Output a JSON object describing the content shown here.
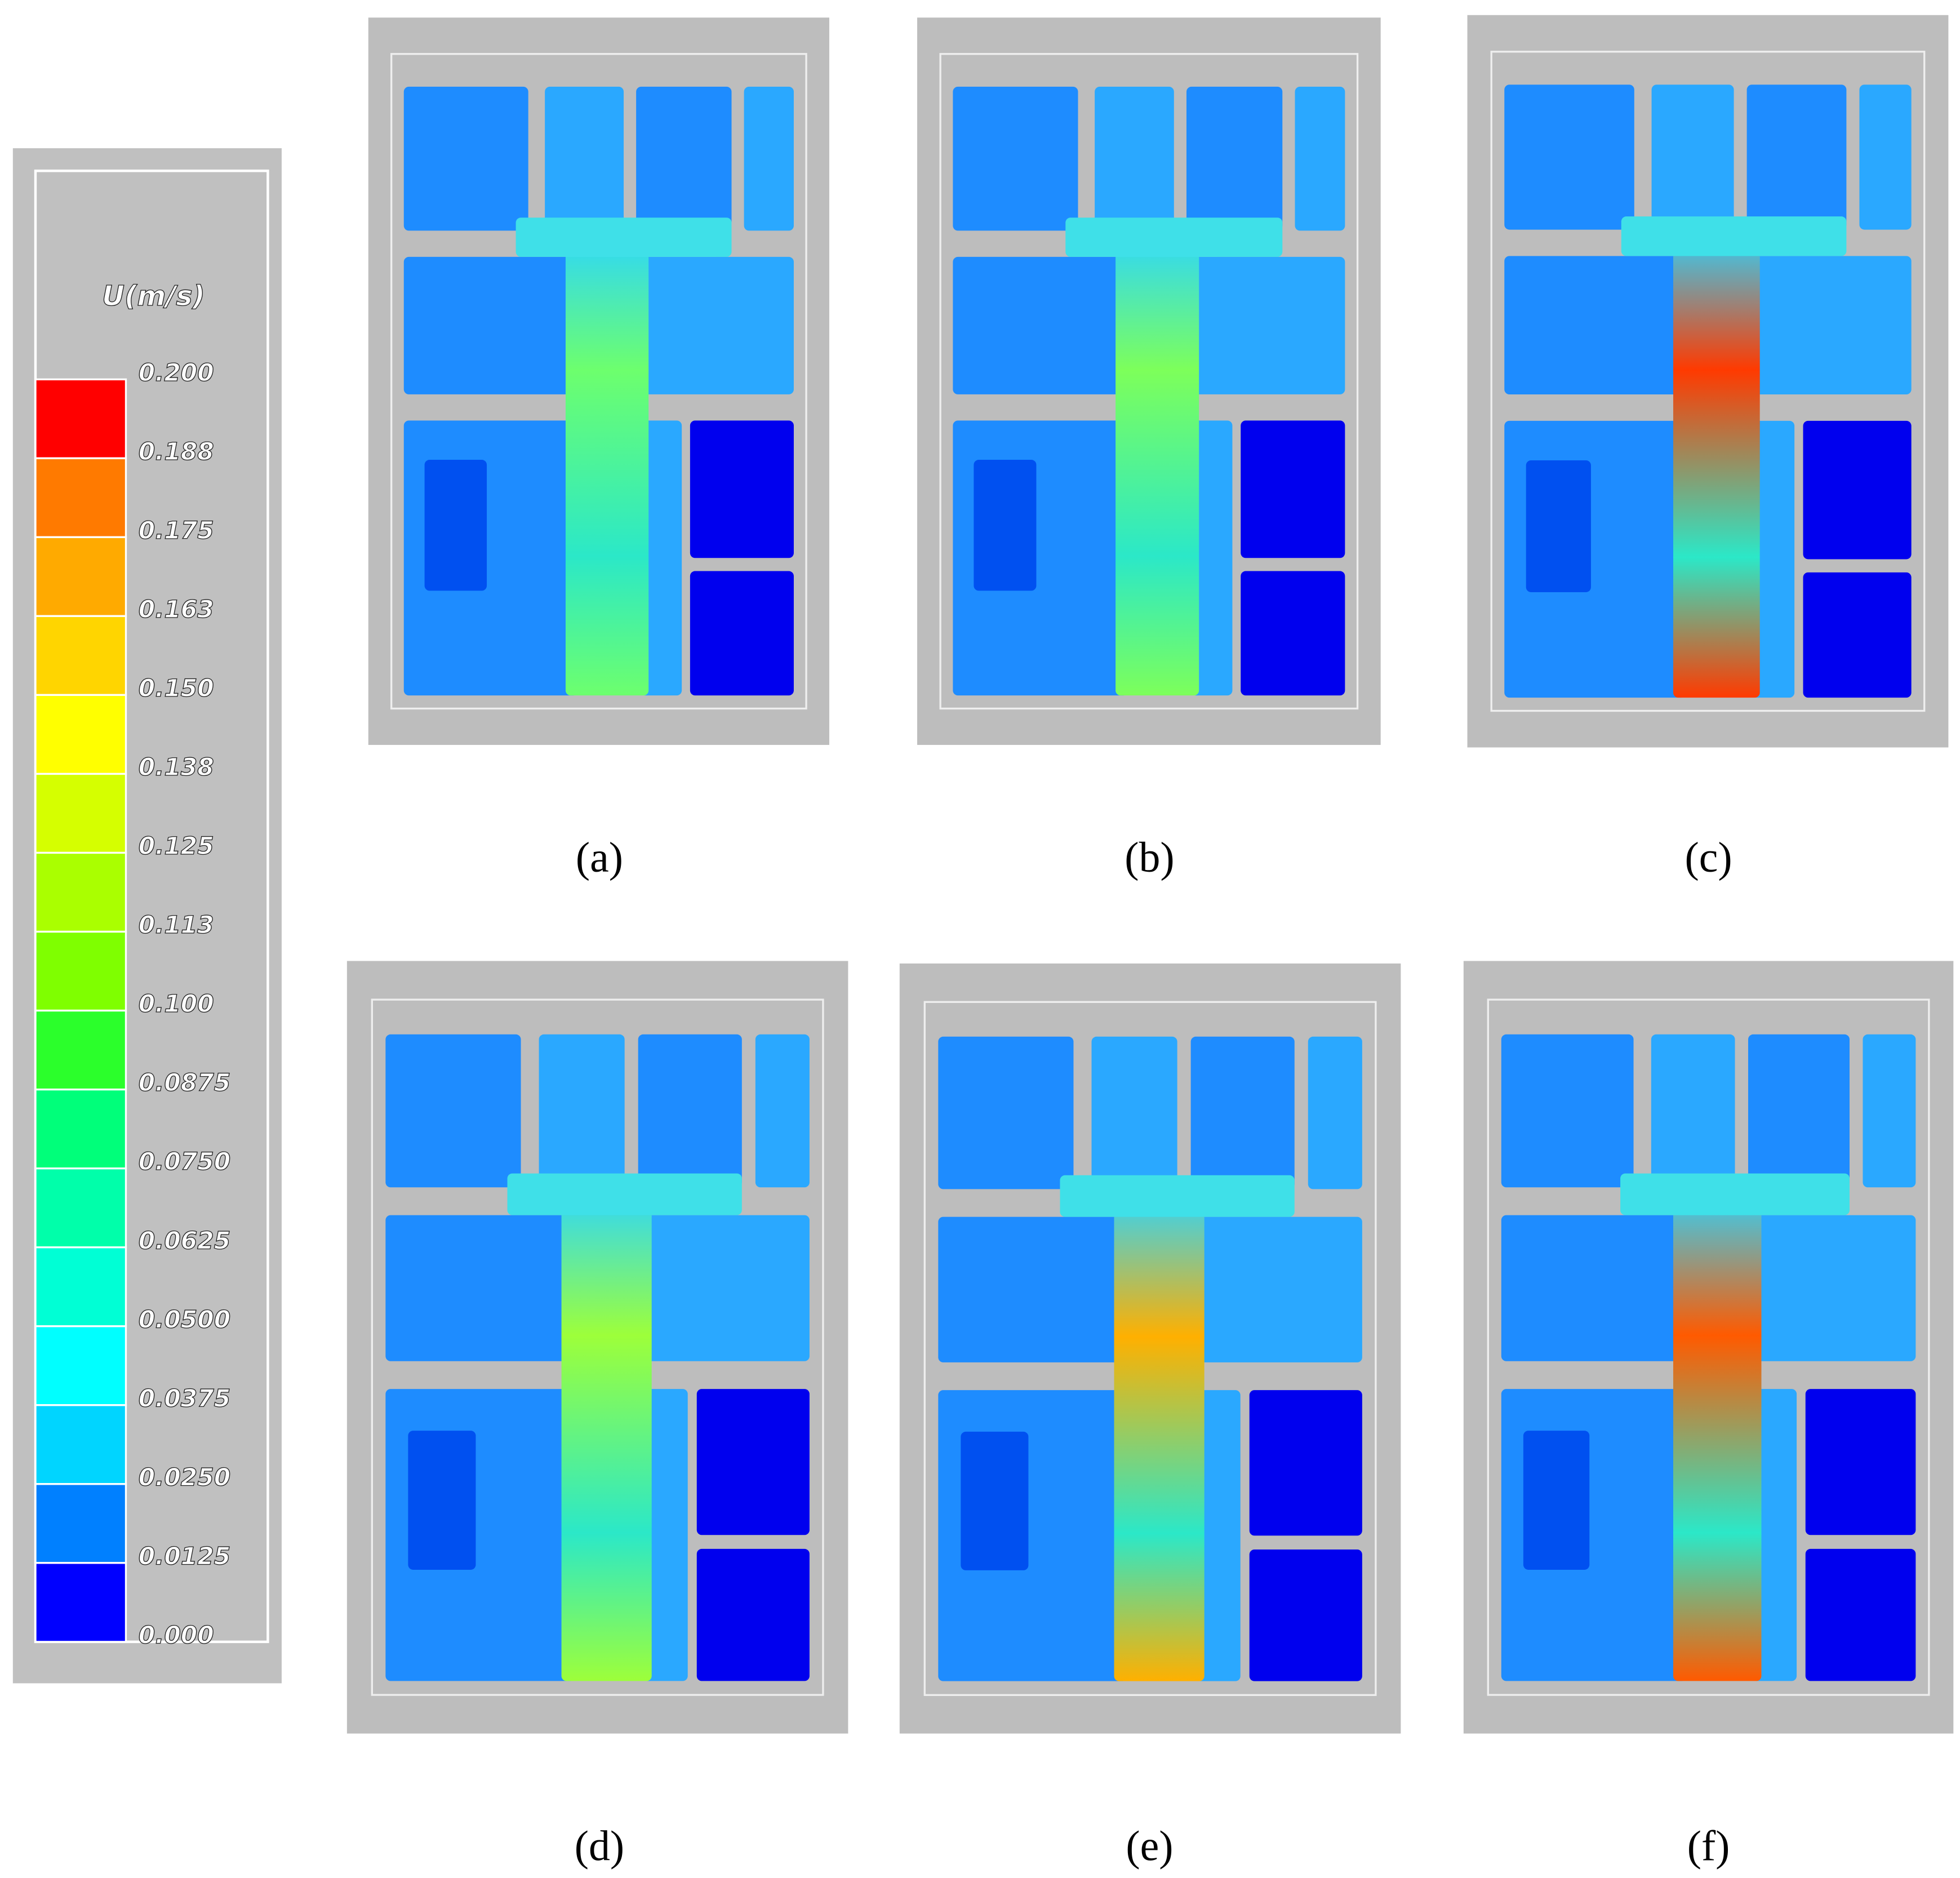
{
  "legend": {
    "title": "U(m/s)",
    "labels": [
      "0.200",
      "0.188",
      "0.175",
      "0.163",
      "0.150",
      "0.138",
      "0.125",
      "0.113",
      "0.100",
      "0.0875",
      "0.0750",
      "0.0625",
      "0.0500",
      "0.0375",
      "0.0250",
      "0.0125",
      "0.000"
    ],
    "colors": [
      "#ff0000",
      "#ff7a00",
      "#ffaa00",
      "#ffd500",
      "#ffff00",
      "#d5ff00",
      "#aaff00",
      "#7fff00",
      "#2bff2b",
      "#00ff7a",
      "#00ffaa",
      "#00ffd5",
      "#00ffff",
      "#00d5ff",
      "#0080ff",
      "#0000ff"
    ]
  },
  "panels": [
    {
      "label": "(a)"
    },
    {
      "label": "(b)"
    },
    {
      "label": "(c)"
    },
    {
      "label": "(d)"
    },
    {
      "label": "(e)"
    },
    {
      "label": "(f)"
    }
  ]
}
